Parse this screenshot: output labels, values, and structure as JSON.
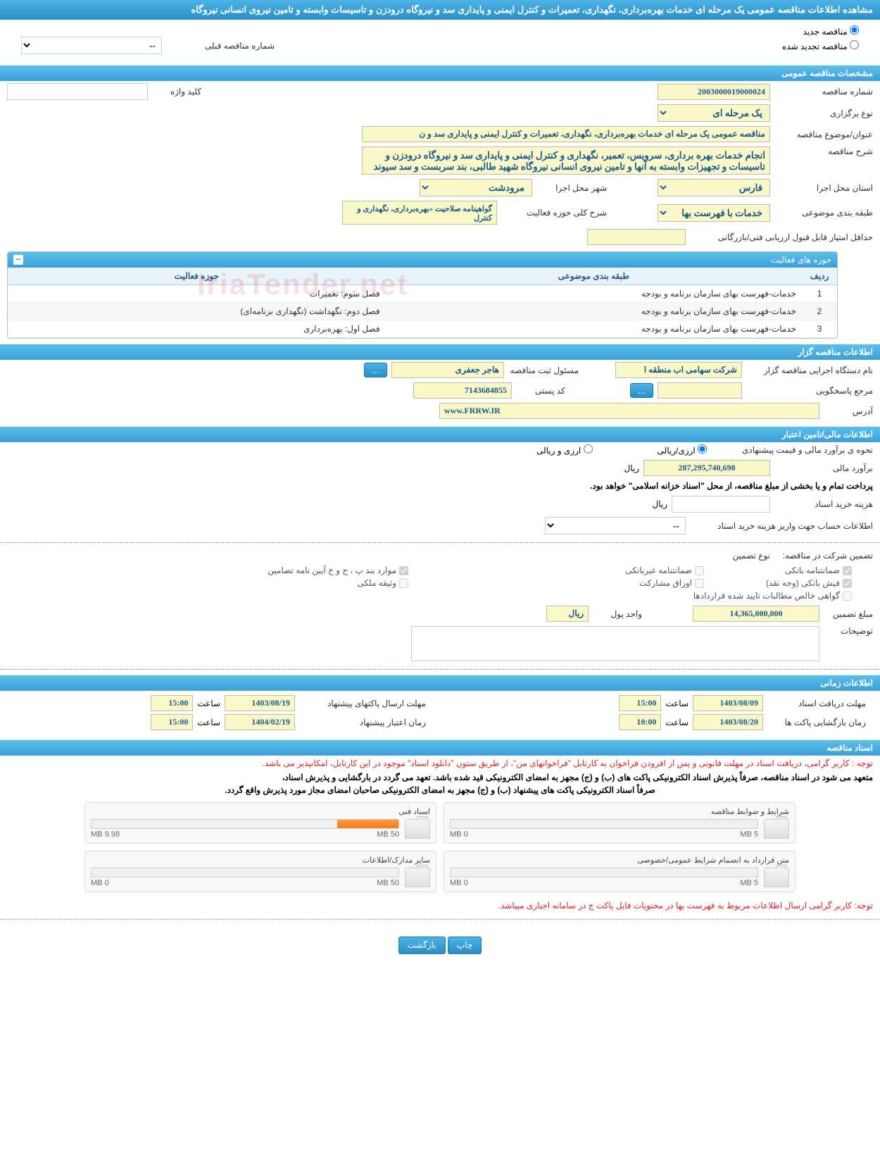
{
  "header": {
    "title": "مشاهده اطلاعات مناقصه عمومی یک مرحله ای خدمات بهره‌برداری، نگهداری، تعمیرات و کنترل ایمنی و پایداری سد و نیروگاه درودزن و تاسیسات وابسته و تامین نیروی انسانی نیروگاه"
  },
  "radios": {
    "new_tender": "مناقصه جدید",
    "renewed_tender": "مناقصه تجدید شده",
    "prev_tender_label": "شماره مناقصه قبلی",
    "prev_tender_value": "--"
  },
  "sections": {
    "general": "مشخصات مناقصه عمومی",
    "activities": "حوزه های فعالیت",
    "tenderer": "اطلاعات مناقصه گزار",
    "financial": "اطلاعات مالی/تامین اعتبار",
    "timing": "اطلاعات زمانی",
    "documents": "اسناد مناقصه"
  },
  "general": {
    "tender_no_label": "شماره مناقصه",
    "tender_no": "2003000019000024",
    "keyword_label": "کلید واژه",
    "type_label": "نوع برگزاری",
    "type": "یک مرحله ای",
    "subject_label": "عنوان/موضوع مناقصه",
    "subject": "مناقصه عمومی یک مرحله ای خدمات بهره‌برداری، نگهداری، تعمیرات و کنترل ایمنی و پایداری سد و ن",
    "desc_label": "شرح مناقصه",
    "desc": "انجام خدمات بهره برداری، سرویس، تعمیر، نگهداری و کنترل ایمنی و پایداری سد و نیروگاه درودزن و تاسیسات و تجهیزات وابسته به آنها و تامین نیروی انسانی نیروگاه شهید طالبی، بند سربست و سد سیوند",
    "province_label": "استان محل اجرا",
    "province": "فارس",
    "city_label": "شهر محل اجرا",
    "city": "مرودشت",
    "category_label": "طبقه بندی موضوعی",
    "category": "خدمات با فهرست بها",
    "activity_desc_label": "شرح کلی حوزه فعالیت",
    "activity_desc": "گواهینامه صلاحیت «بهره‌برداری، نگهداری و کنترل",
    "min_score_label": "حداقل امتیاز قابل قبول ارزیابی فنی/بازرگانی"
  },
  "activities_table": {
    "col_row": "ردیف",
    "col_category": "طبقه بندی موضوعی",
    "col_activity": "حوزه فعالیت",
    "rows": [
      {
        "n": "1",
        "cat": "خدمات-فهرست بهای سازمان برنامه و بودجه",
        "act": "فصل سوم: تعمیرات"
      },
      {
        "n": "2",
        "cat": "خدمات-فهرست بهای سازمان برنامه و بودجه",
        "act": "فصل دوم: نگهداشت (نگهداری برنامه‌ای)"
      },
      {
        "n": "3",
        "cat": "خدمات-فهرست بهای سازمان برنامه و بودجه",
        "act": "فصل اول: بهره‌برداری"
      }
    ]
  },
  "tenderer": {
    "org_label": "نام دستگاه اجرایی مناقصه گزار",
    "org": "شرکت سهامی اب منطقه ا",
    "registrar_label": "مسئول ثبت مناقصه",
    "registrar": "هاجر جعفری",
    "responder_label": "مرجع پاسخگویی",
    "postal_label": "کد پستی",
    "postal": "7143684855",
    "address_label": "آدرس",
    "address": "www.FRRW.IR"
  },
  "financial": {
    "method_label": "نحوه ی برآورد مالی و قیمت پیشنهادی",
    "opt_currency": "ارزی/ریالی",
    "opt_both": "ارزی و ریالی",
    "estimate_label": "برآورد مالی",
    "estimate": "287,295,740,698",
    "rial": "ریال",
    "payment_note": "پرداخت تمام و یا بخشی از مبلغ مناقصه، از محل \"اسناد خزانه اسلامی\" خواهد بود.",
    "doc_cost_label": "هزینه خرید اسناد",
    "account_label": "اطلاعات حساب جهت واریز هزینه خرید اسناد",
    "account_value": "--",
    "guarantee_label": "تضمین شرکت در مناقصه:",
    "guarantee_type_label": "نوع تضمین",
    "chk_bank": "ضمانتنامه بانکی",
    "chk_nonbank": "ضمانتنامه غیربانکی",
    "chk_items": "موارد بند پ ، ج و خ آیین نامه تضامین",
    "chk_cash": "فیش بانکی (وجه نقد)",
    "chk_bonds": "اوراق مشارکت",
    "chk_property": "وثیقه ملکی",
    "chk_receivables": "گواهی خالص مطالبات تایید شده قراردادها",
    "amount_label": "مبلغ تضمین",
    "amount": "14,365,000,000",
    "unit_label": "واحد پول",
    "unit": "ریال",
    "notes_label": "توضیحات"
  },
  "timing": {
    "receive_deadline_label": "مهلت دریافت اسناد",
    "receive_deadline_date": "1403/08/09",
    "receive_deadline_time": "15:00",
    "send_deadline_label": "مهلت ارسال پاکتهای پیشنهاد",
    "send_deadline_date": "1403/08/19",
    "send_deadline_time": "15:00",
    "open_label": "زمان بازگشایی پاکت ها",
    "open_date": "1403/08/20",
    "open_time": "10:00",
    "validity_label": "زمان اعتبار پیشنهاد",
    "validity_date": "1404/02/19",
    "validity_time": "15:00",
    "time_label": "ساعت"
  },
  "documents": {
    "notice1": "توجه : کاربر گرامی، دریافت اسناد در مهلت قانونی و پس از افزودن فراخوان به کارتابل \"فراخوانهای من\"، از طریق ستون \"دانلود اسناد\" موجود در این کارتابل، امکانپذیر می باشد.",
    "notice2a": "متعهد می شود در اسناد مناقصه، صرفاً پذیرش اسناد الکترونیکی پاکت های (ب) و (ج) مجهز به امضای الکترونیکی قید شده باشد. تعهد می گردد در بارگشایی و پذیرش اسناد،",
    "notice2b": "صرفاً اسناد الکترونیکی پاکت های پیشنهاد (ب) و (ج) مجهز به امضای الکترونیکی صاحبان امضای مجاز مورد پذیرش واقع گردد.",
    "notice3": "توجه: کاربر گرامی ارسال اطلاعات مربوط به فهرست بها در محتویات فایل پاکت ج در سامانه اجباری میباشد.",
    "docs": [
      {
        "title": "شرایط و ضوابط مناقصه",
        "used": "0 MB",
        "total": "5 MB",
        "pct": 0
      },
      {
        "title": "اسناد فنی",
        "used": "9.98 MB",
        "total": "50 MB",
        "pct": 20
      },
      {
        "title": "متن قرارداد به انضمام شرایط عمومی/خصوصی",
        "used": "0 MB",
        "total": "5 MB",
        "pct": 0
      },
      {
        "title": "سایر مدارک/اطلاعات",
        "used": "0 MB",
        "total": "50 MB",
        "pct": 0
      }
    ]
  },
  "buttons": {
    "print": "چاپ",
    "back": "بازگشت",
    "dots": "..."
  }
}
